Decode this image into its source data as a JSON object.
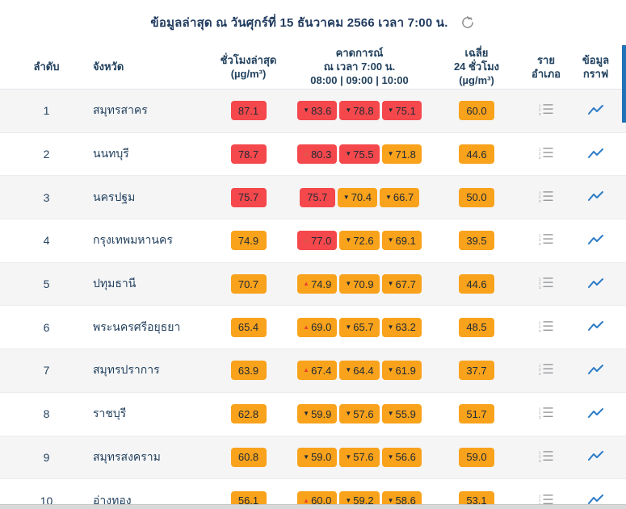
{
  "title": {
    "text": "ข้อมูลล่าสุด ณ วันศุกร์ที่ 15 ธันวาคม 2566 เวลา 7:00 น."
  },
  "arrows": {
    "up": "▲",
    "down": "▼"
  },
  "colors": {
    "red_badge": "#f5484c",
    "orange_badge": "#f9a21b",
    "accent_blue": "#2979c9",
    "scrollbar_blue": "#2272b8",
    "header_text": "#23425f"
  },
  "icons": {
    "refresh": "refresh-icon",
    "district": "ordered-list-icon",
    "graph": "line-chart-icon"
  },
  "table": {
    "headers": {
      "rank": "ลำดับ",
      "province": "จังหวัด",
      "latest_line1": "ชั่วโมงล่าสุด",
      "latest_line2": "(µg/m³)",
      "forecast_line1": "คาดการณ์",
      "forecast_line2": "ณ เวลา 7:00 น.",
      "forecast_line3": "08:00 | 09:00 | 10:00",
      "avg_line1": "เฉลี่ย",
      "avg_line2": "24 ชั่วโมง",
      "avg_line3": "(µg/m³)",
      "district_line1": "ราย",
      "district_line2": "อำเภอ",
      "graph_line1": "ข้อมูล",
      "graph_line2": "กราฟ"
    },
    "rows": [
      {
        "rank": "1",
        "province": "สมุทรสาคร",
        "latest": {
          "value": "87.1",
          "level": "red"
        },
        "forecast": [
          {
            "value": "83.6",
            "level": "red",
            "trend": "down"
          },
          {
            "value": "78.8",
            "level": "red",
            "trend": "down"
          },
          {
            "value": "75.1",
            "level": "red",
            "trend": "down"
          }
        ],
        "avg": {
          "value": "60.0",
          "level": "orange"
        }
      },
      {
        "rank": "2",
        "province": "นนทบุรี",
        "latest": {
          "value": "78.7",
          "level": "red"
        },
        "forecast": [
          {
            "value": "80.3",
            "level": "red",
            "trend": "up"
          },
          {
            "value": "75.5",
            "level": "red",
            "trend": "down"
          },
          {
            "value": "71.8",
            "level": "orange",
            "trend": "down"
          }
        ],
        "avg": {
          "value": "44.6",
          "level": "orange"
        }
      },
      {
        "rank": "3",
        "province": "นครปฐม",
        "latest": {
          "value": "75.7",
          "level": "red"
        },
        "forecast": [
          {
            "value": "75.7",
            "level": "red",
            "trend": "none"
          },
          {
            "value": "70.4",
            "level": "orange",
            "trend": "down"
          },
          {
            "value": "66.7",
            "level": "orange",
            "trend": "down"
          }
        ],
        "avg": {
          "value": "50.0",
          "level": "orange"
        }
      },
      {
        "rank": "4",
        "province": "กรุงเทพมหานคร",
        "latest": {
          "value": "74.9",
          "level": "orange"
        },
        "forecast": [
          {
            "value": "77.0",
            "level": "red",
            "trend": "up"
          },
          {
            "value": "72.6",
            "level": "orange",
            "trend": "down"
          },
          {
            "value": "69.1",
            "level": "orange",
            "trend": "down"
          }
        ],
        "avg": {
          "value": "39.5",
          "level": "orange"
        }
      },
      {
        "rank": "5",
        "province": "ปทุมธานี",
        "latest": {
          "value": "70.7",
          "level": "orange"
        },
        "forecast": [
          {
            "value": "74.9",
            "level": "orange",
            "trend": "up"
          },
          {
            "value": "70.9",
            "level": "orange",
            "trend": "down"
          },
          {
            "value": "67.7",
            "level": "orange",
            "trend": "down"
          }
        ],
        "avg": {
          "value": "44.6",
          "level": "orange"
        }
      },
      {
        "rank": "6",
        "province": "พระนครศรีอยุธยา",
        "latest": {
          "value": "65.4",
          "level": "orange"
        },
        "forecast": [
          {
            "value": "69.0",
            "level": "orange",
            "trend": "up"
          },
          {
            "value": "65.7",
            "level": "orange",
            "trend": "down"
          },
          {
            "value": "63.2",
            "level": "orange",
            "trend": "down"
          }
        ],
        "avg": {
          "value": "48.5",
          "level": "orange"
        }
      },
      {
        "rank": "7",
        "province": "สมุทรปราการ",
        "latest": {
          "value": "63.9",
          "level": "orange"
        },
        "forecast": [
          {
            "value": "67.4",
            "level": "orange",
            "trend": "up"
          },
          {
            "value": "64.4",
            "level": "orange",
            "trend": "down"
          },
          {
            "value": "61.9",
            "level": "orange",
            "trend": "down"
          }
        ],
        "avg": {
          "value": "37.7",
          "level": "orange"
        }
      },
      {
        "rank": "8",
        "province": "ราชบุรี",
        "latest": {
          "value": "62.8",
          "level": "orange"
        },
        "forecast": [
          {
            "value": "59.9",
            "level": "orange",
            "trend": "down"
          },
          {
            "value": "57.6",
            "level": "orange",
            "trend": "down"
          },
          {
            "value": "55.9",
            "level": "orange",
            "trend": "down"
          }
        ],
        "avg": {
          "value": "51.7",
          "level": "orange"
        }
      },
      {
        "rank": "9",
        "province": "สมุทรสงคราม",
        "latest": {
          "value": "60.8",
          "level": "orange"
        },
        "forecast": [
          {
            "value": "59.0",
            "level": "orange",
            "trend": "down"
          },
          {
            "value": "57.6",
            "level": "orange",
            "trend": "down"
          },
          {
            "value": "56.6",
            "level": "orange",
            "trend": "down"
          }
        ],
        "avg": {
          "value": "59.0",
          "level": "orange"
        }
      },
      {
        "rank": "10",
        "province": "อ่างทอง",
        "latest": {
          "value": "56.1",
          "level": "orange"
        },
        "forecast": [
          {
            "value": "60.0",
            "level": "orange",
            "trend": "up"
          },
          {
            "value": "59.2",
            "level": "orange",
            "trend": "down"
          },
          {
            "value": "58.6",
            "level": "orange",
            "trend": "down"
          }
        ],
        "avg": {
          "value": "53.1",
          "level": "orange"
        }
      }
    ]
  }
}
